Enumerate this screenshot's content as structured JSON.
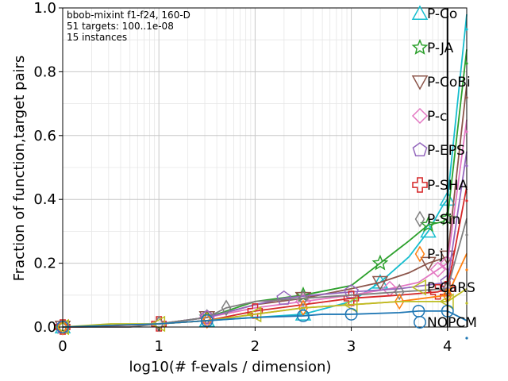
{
  "chart_data": {
    "type": "line",
    "xlabel": "log10(# f-evals / dimension)",
    "ylabel": "Fraction of function,target pairs",
    "xlim": [
      0,
      4.2
    ],
    "ylim": [
      0,
      1.0
    ],
    "xticks": [
      {
        "v": 0,
        "label": "0"
      },
      {
        "v": 1,
        "label": "1"
      },
      {
        "v": 2,
        "label": "2"
      },
      {
        "v": 3,
        "label": "3"
      },
      {
        "v": 4,
        "label": "4"
      }
    ],
    "yticks": [
      {
        "v": 0.0,
        "label": "0.0"
      },
      {
        "v": 0.2,
        "label": "0.2"
      },
      {
        "v": 0.4,
        "label": "0.4"
      },
      {
        "v": 0.6,
        "label": "0.6"
      },
      {
        "v": 0.8,
        "label": "0.8"
      },
      {
        "v": 1.0,
        "label": "1.0"
      }
    ],
    "grid": true,
    "info_lines": [
      "bbob-mixint f1-f24, 160-D",
      "51 targets: 100..1e-08",
      "15 instances"
    ],
    "series": [
      {
        "name": "P-Co",
        "color": "#17becf",
        "marker": "triangle-up",
        "x": [
          0.0,
          1.0,
          1.5,
          2.0,
          2.5,
          3.0,
          3.3,
          3.6,
          3.8,
          3.95,
          4.0,
          4.2
        ],
        "y": [
          0.0,
          0.01,
          0.02,
          0.03,
          0.04,
          0.08,
          0.14,
          0.22,
          0.3,
          0.38,
          0.4,
          0.98
        ]
      },
      {
        "name": "P-JA",
        "color": "#2ca02c",
        "marker": "star",
        "x": [
          0.0,
          1.0,
          1.5,
          2.0,
          2.5,
          3.0,
          3.3,
          3.6,
          3.8,
          3.95,
          4.0,
          4.2
        ],
        "y": [
          0.0,
          0.01,
          0.03,
          0.08,
          0.1,
          0.13,
          0.2,
          0.27,
          0.32,
          0.33,
          0.34,
          0.87
        ]
      },
      {
        "name": "P-CoBi",
        "color": "#8c564b",
        "marker": "triangle-down",
        "x": [
          0.0,
          1.0,
          1.5,
          2.0,
          2.5,
          3.0,
          3.3,
          3.6,
          3.8,
          4.0,
          4.2
        ],
        "y": [
          0.0,
          0.01,
          0.03,
          0.07,
          0.09,
          0.12,
          0.14,
          0.17,
          0.2,
          0.22,
          0.76
        ]
      },
      {
        "name": "P-c",
        "color": "#e377c2",
        "marker": "diamond",
        "x": [
          0.0,
          1.0,
          1.5,
          2.0,
          2.5,
          3.0,
          3.4,
          3.7,
          3.9,
          4.0,
          4.2
        ],
        "y": [
          0.0,
          0.01,
          0.03,
          0.06,
          0.08,
          0.1,
          0.12,
          0.14,
          0.18,
          0.2,
          0.65
        ]
      },
      {
        "name": "P-EPS",
        "color": "#9467bd",
        "marker": "pentagon",
        "x": [
          0.0,
          1.0,
          1.5,
          2.0,
          2.3,
          2.6,
          3.0,
          3.5,
          4.0,
          4.2
        ],
        "y": [
          0.0,
          0.01,
          0.03,
          0.07,
          0.09,
          0.1,
          0.11,
          0.12,
          0.14,
          0.55
        ]
      },
      {
        "name": "P-SHA",
        "color": "#d62728",
        "marker": "plus",
        "x": [
          0.0,
          0.2,
          1.0,
          1.5,
          2.0,
          2.5,
          3.0,
          3.5,
          3.9,
          4.0,
          4.2
        ],
        "y": [
          0.0,
          0.0,
          0.01,
          0.02,
          0.05,
          0.07,
          0.09,
          0.1,
          0.11,
          0.12,
          0.44
        ]
      },
      {
        "name": "P-Sin",
        "color": "#7f7f7f",
        "marker": "diamond-thin",
        "x": [
          0.0,
          0.7,
          1.0,
          1.5,
          1.7,
          2.0,
          2.5,
          3.0,
          3.5,
          4.0,
          4.2
        ],
        "y": [
          0.0,
          0.0,
          0.01,
          0.03,
          0.06,
          0.08,
          0.09,
          0.1,
          0.11,
          0.12,
          0.34
        ]
      },
      {
        "name": "P-j",
        "color": "#ff7f0e",
        "marker": "diamond-thin",
        "x": [
          0.0,
          1.0,
          1.5,
          2.0,
          2.5,
          3.0,
          3.5,
          4.0,
          4.2
        ],
        "y": [
          0.0,
          0.01,
          0.02,
          0.04,
          0.06,
          0.07,
          0.08,
          0.1,
          0.23
        ]
      },
      {
        "name": "P-CaRS",
        "color": "#bcbd22",
        "marker": "triangle-left",
        "x": [
          0.0,
          0.5,
          1.0,
          1.5,
          2.0,
          2.5,
          3.0,
          3.5,
          4.0,
          4.2
        ],
        "y": [
          0.0,
          0.01,
          0.01,
          0.02,
          0.04,
          0.06,
          0.07,
          0.08,
          0.08,
          0.12
        ]
      },
      {
        "name": "NOPCM",
        "color": "#1f77b4",
        "marker": "circle",
        "x": [
          0.0,
          1.0,
          1.5,
          2.0,
          2.5,
          2.7,
          3.0,
          3.5,
          3.7,
          4.0,
          4.2
        ],
        "y": [
          0.0,
          0.01,
          0.02,
          0.03,
          0.035,
          0.04,
          0.04,
          0.045,
          0.05,
          0.05,
          0.02
        ]
      }
    ]
  }
}
